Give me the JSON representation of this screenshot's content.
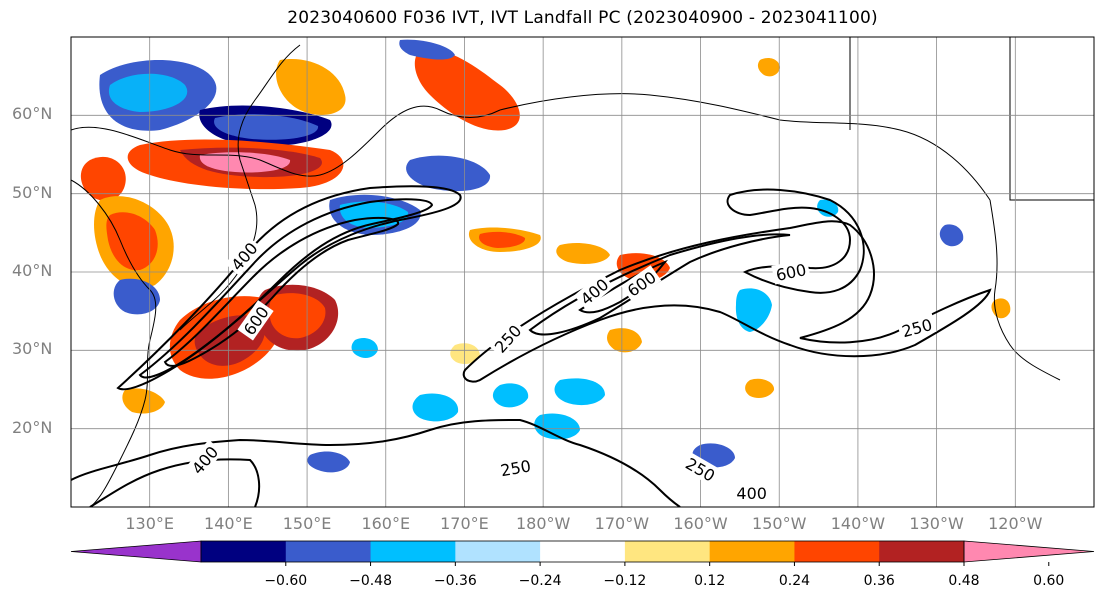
{
  "title": "2023040600 F036 IVT, IVT Landfall PC (2023040900 - 2023041100)",
  "map": {
    "extent": {
      "lon_min": 120,
      "lon_max": 250,
      "lat_min": 10,
      "lat_max": 70
    },
    "lat_ticks": [
      {
        "value": 20,
        "label": "20°N"
      },
      {
        "value": 30,
        "label": "30°N"
      },
      {
        "value": 40,
        "label": "40°N"
      },
      {
        "value": 50,
        "label": "50°N"
      },
      {
        "value": 60,
        "label": "60°N"
      }
    ],
    "lon_ticks": [
      {
        "value": 130,
        "label": "130°E"
      },
      {
        "value": 140,
        "label": "140°E"
      },
      {
        "value": 150,
        "label": "150°E"
      },
      {
        "value": 160,
        "label": "160°E"
      },
      {
        "value": 170,
        "label": "170°E"
      },
      {
        "value": 180,
        "label": "180°W"
      },
      {
        "value": 190,
        "label": "170°W"
      },
      {
        "value": 200,
        "label": "160°W"
      },
      {
        "value": 210,
        "label": "150°W"
      },
      {
        "value": 220,
        "label": "140°W"
      },
      {
        "value": 230,
        "label": "130°W"
      },
      {
        "value": 240,
        "label": "120°W"
      }
    ],
    "gridlines": true,
    "contour_labels": [
      {
        "text": "250",
        "lon": 175.5,
        "lat": 31.5,
        "rot": -48
      },
      {
        "text": "400",
        "lon": 186.5,
        "lat": 37.5,
        "rot": -40
      },
      {
        "text": "600",
        "lon": 192.5,
        "lat": 38.5,
        "rot": -35
      },
      {
        "text": "600",
        "lon": 211.5,
        "lat": 40.0,
        "rot": -12
      },
      {
        "text": "250",
        "lon": 227.5,
        "lat": 32.9,
        "rot": -15
      },
      {
        "text": "400",
        "lon": 142.0,
        "lat": 42.0,
        "rot": -50
      },
      {
        "text": "600",
        "lon": 143.5,
        "lat": 33.8,
        "rot": -55
      },
      {
        "text": "250",
        "lon": 176.5,
        "lat": 15.0,
        "rot": -10
      },
      {
        "text": "250",
        "lon": 200.0,
        "lat": 14.8,
        "rot": 30
      },
      {
        "text": "400",
        "lon": 137.0,
        "lat": 16.0,
        "rot": -50
      },
      {
        "text": "400",
        "lon": 206.5,
        "lat": 11.8,
        "rot": 0
      }
    ]
  },
  "colorbar": {
    "colors": [
      "#9933cc",
      "#000080",
      "#3a5ccc",
      "#00bfff",
      "#b0e2ff",
      "#ffffff",
      "#ffe680",
      "#ffa500",
      "#ff4500",
      "#b22222",
      "#ff88b0"
    ],
    "ticks": [
      "−0.60",
      "−0.48",
      "−0.36",
      "−0.24",
      "−0.12",
      "0.12",
      "0.24",
      "0.36",
      "0.48",
      "0.60"
    ]
  }
}
